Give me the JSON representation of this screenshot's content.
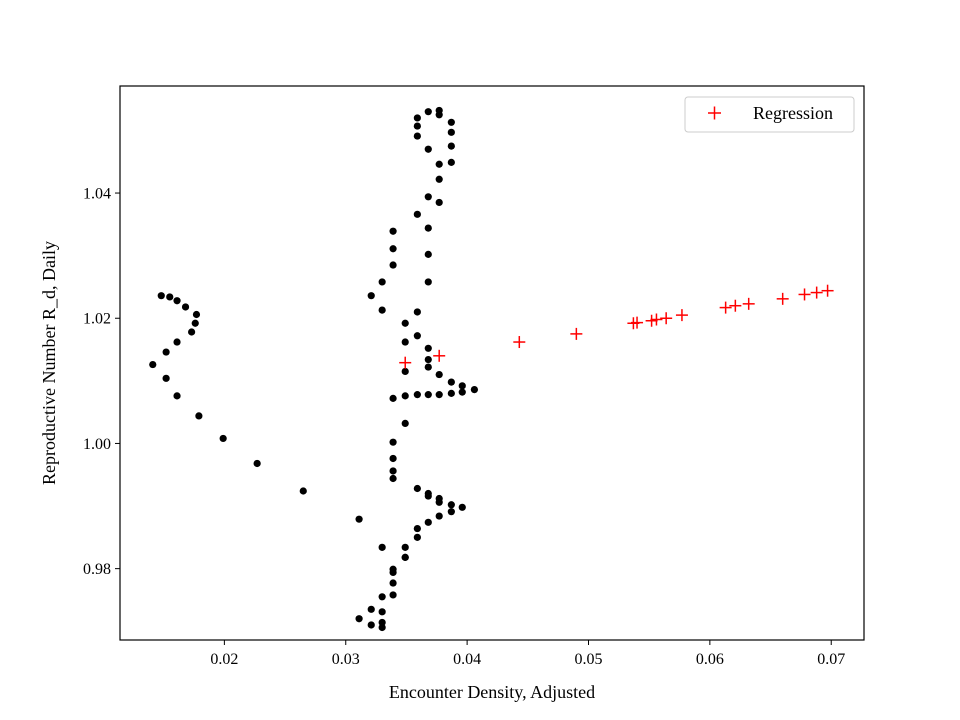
{
  "chart_data": {
    "type": "scatter",
    "title": "",
    "xlabel": "Encounter Density, Adjusted",
    "ylabel": "Reproductive Number R_d, Daily",
    "xlim": [
      0.0114,
      0.0727
    ],
    "ylim": [
      0.9686,
      1.0571
    ],
    "xticks": [
      0.02,
      0.03,
      0.04,
      0.05,
      0.06,
      0.07
    ],
    "xtick_labels": [
      "0.02",
      "0.03",
      "0.04",
      "0.05",
      "0.06",
      "0.07"
    ],
    "yticks": [
      0.98,
      1.0,
      1.02,
      1.04
    ],
    "ytick_labels": [
      "0.98",
      "1.00",
      "1.02",
      "1.04"
    ],
    "grid": false,
    "legend_position": "top-right",
    "series": [
      {
        "marker": "dot",
        "color": "#000000",
        "points": [
          [
            0.0148,
            1.0236
          ],
          [
            0.0155,
            1.0234
          ],
          [
            0.0161,
            1.0228
          ],
          [
            0.0168,
            1.0218
          ],
          [
            0.0177,
            1.0206
          ],
          [
            0.0176,
            1.0192
          ],
          [
            0.0173,
            1.0178
          ],
          [
            0.0161,
            1.0162
          ],
          [
            0.0152,
            1.0146
          ],
          [
            0.0141,
            1.0126
          ],
          [
            0.0152,
            1.0104
          ],
          [
            0.0161,
            1.0076
          ],
          [
            0.0179,
            1.0044
          ],
          [
            0.0199,
            1.0008
          ],
          [
            0.0227,
            0.9968
          ],
          [
            0.0265,
            0.9924
          ],
          [
            0.0311,
            0.9879
          ],
          [
            0.033,
            0.9834
          ],
          [
            0.0349,
            0.9834
          ],
          [
            0.0349,
            0.9818
          ],
          [
            0.0359,
            0.985
          ],
          [
            0.0359,
            0.9864
          ],
          [
            0.0368,
            0.9874
          ],
          [
            0.0377,
            0.9884
          ],
          [
            0.0387,
            0.9891
          ],
          [
            0.0396,
            0.9898
          ],
          [
            0.0387,
            0.9902
          ],
          [
            0.0377,
            0.9906
          ],
          [
            0.0377,
            0.9912
          ],
          [
            0.0368,
            0.9916
          ],
          [
            0.0368,
            0.992
          ],
          [
            0.0359,
            0.9928
          ],
          [
            0.0339,
            0.9944
          ],
          [
            0.0339,
            0.9956
          ],
          [
            0.0339,
            0.9976
          ],
          [
            0.0339,
            1.0002
          ],
          [
            0.0349,
            1.0032
          ],
          [
            0.0339,
            1.0072
          ],
          [
            0.0349,
            1.0076
          ],
          [
            0.0359,
            1.0078
          ],
          [
            0.0368,
            1.0078
          ],
          [
            0.0377,
            1.0078
          ],
          [
            0.0387,
            1.008
          ],
          [
            0.0396,
            1.0082
          ],
          [
            0.0406,
            1.0086
          ],
          [
            0.0396,
            1.0092
          ],
          [
            0.0387,
            1.0098
          ],
          [
            0.0377,
            1.011
          ],
          [
            0.0368,
            1.0122
          ],
          [
            0.0349,
            1.0115
          ],
          [
            0.0368,
            1.0134
          ],
          [
            0.0368,
            1.0152
          ],
          [
            0.0349,
            1.0162
          ],
          [
            0.0359,
            1.0172
          ],
          [
            0.0349,
            1.0192
          ],
          [
            0.0359,
            1.021
          ],
          [
            0.033,
            1.0213
          ],
          [
            0.0321,
            1.0236
          ],
          [
            0.033,
            1.0258
          ],
          [
            0.0339,
            1.0285
          ],
          [
            0.0368,
            1.0258
          ],
          [
            0.0368,
            1.0302
          ],
          [
            0.0339,
            1.0311
          ],
          [
            0.0339,
            1.0339
          ],
          [
            0.0368,
            1.0344
          ],
          [
            0.0359,
            1.0366
          ],
          [
            0.0377,
            1.0385
          ],
          [
            0.0368,
            1.0394
          ],
          [
            0.0377,
            1.0422
          ],
          [
            0.0387,
            1.0449
          ],
          [
            0.0377,
            1.0446
          ],
          [
            0.0368,
            1.047
          ],
          [
            0.0387,
            1.0475
          ],
          [
            0.0387,
            1.0497
          ],
          [
            0.0359,
            1.0491
          ],
          [
            0.0359,
            1.0507
          ],
          [
            0.0387,
            1.0513
          ],
          [
            0.0359,
            1.052
          ],
          [
            0.0377,
            1.0525
          ],
          [
            0.0368,
            1.053
          ],
          [
            0.0377,
            1.0532
          ],
          [
            0.0349,
            0.9818
          ],
          [
            0.0339,
            0.9799
          ],
          [
            0.0339,
            0.9794
          ],
          [
            0.0339,
            0.9777
          ],
          [
            0.0339,
            0.9758
          ],
          [
            0.033,
            0.9755
          ],
          [
            0.033,
            0.9731
          ],
          [
            0.0321,
            0.9735
          ],
          [
            0.0311,
            0.972
          ],
          [
            0.0321,
            0.971
          ],
          [
            0.033,
            0.9714
          ],
          [
            0.033,
            0.9706
          ]
        ]
      },
      {
        "name": "Regression",
        "marker": "plus",
        "color": "#ff0000",
        "points": [
          [
            0.0349,
            1.0129
          ],
          [
            0.0377,
            1.014
          ],
          [
            0.0443,
            1.0162
          ],
          [
            0.049,
            1.0175
          ],
          [
            0.0537,
            1.0192
          ],
          [
            0.054,
            1.0193
          ],
          [
            0.0552,
            1.0196
          ],
          [
            0.0556,
            1.0198
          ],
          [
            0.0564,
            1.02
          ],
          [
            0.0577,
            1.0205
          ],
          [
            0.0613,
            1.0217
          ],
          [
            0.0621,
            1.022
          ],
          [
            0.0632,
            1.0223
          ],
          [
            0.066,
            1.0231
          ],
          [
            0.0678,
            1.0238
          ],
          [
            0.0688,
            1.0241
          ],
          [
            0.0697,
            1.0244
          ]
        ]
      }
    ]
  }
}
